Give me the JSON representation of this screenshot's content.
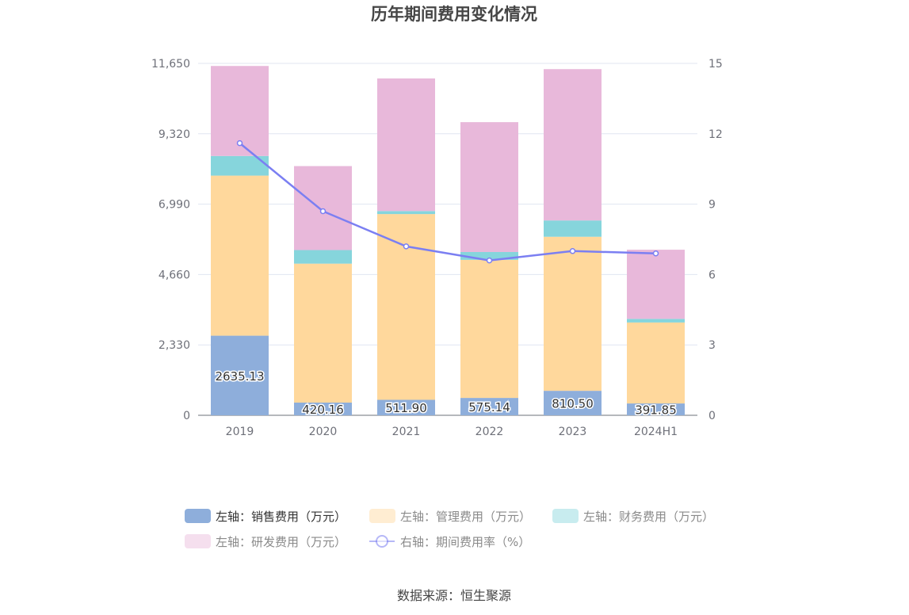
{
  "chart_data": {
    "type": "bar",
    "title": "历年期间费用变化情况",
    "categories": [
      "2019",
      "2020",
      "2021",
      "2022",
      "2023",
      "2024H1"
    ],
    "stacked": true,
    "left_axis": {
      "min": 0,
      "max": 11650,
      "ticks": [
        "0",
        "2,330",
        "4,660",
        "6,990",
        "9,320",
        "11,650"
      ]
    },
    "right_axis": {
      "min": 0,
      "max": 15,
      "ticks": [
        "0",
        "3",
        "6",
        "9",
        "12",
        "15"
      ]
    },
    "series": [
      {
        "name": "左轴：销售费用（万元）",
        "axis": "left",
        "color": "#8eaedb",
        "values": [
          2635.13,
          420.16,
          511.9,
          575.14,
          810.5,
          391.85
        ],
        "labels": [
          "2635.13",
          "420.16",
          "511.90",
          "575.14",
          "810.50",
          "391.85"
        ]
      },
      {
        "name": "左轴：管理费用（万元）",
        "axis": "left",
        "color": "#ffd89c",
        "values": [
          5300,
          4600,
          6150,
          4570,
          5100,
          2680
        ]
      },
      {
        "name": "左轴：财务费用（万元）",
        "axis": "left",
        "color": "#86d5dc",
        "values": [
          650,
          450,
          100,
          260,
          540,
          120
        ]
      },
      {
        "name": "左轴：研发费用（万元）",
        "axis": "left",
        "color": "#e8b8da",
        "values": [
          2980,
          2780,
          4390,
          4300,
          5010,
          2290
        ]
      },
      {
        "name": "右轴：期间费用率（%）",
        "axis": "right",
        "type": "line",
        "color": "#7b7ff2",
        "values": [
          11.6,
          8.7,
          7.2,
          6.6,
          7.0,
          6.9
        ]
      }
    ],
    "grid": true,
    "legend_position": "bottom"
  },
  "source_text": "数据来源：恒生聚源"
}
